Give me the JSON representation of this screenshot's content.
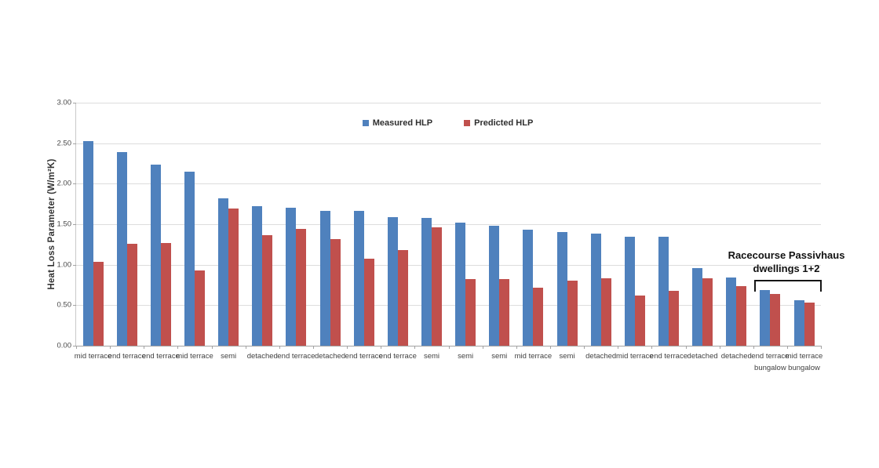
{
  "chart_data": {
    "type": "bar",
    "title": "",
    "xlabel": "",
    "ylabel": "Heat Loss Parameter (W/m²K)",
    "ylim": [
      0,
      3.0
    ],
    "ytick_step": 0.5,
    "yticks": [
      "3.00",
      "2.50",
      "2.00",
      "1.50",
      "1.00",
      "0.50",
      "0.00"
    ],
    "grid": true,
    "legend_position": "top-center",
    "categories": [
      {
        "label": "mid terrace",
        "sublabel": ""
      },
      {
        "label": "end terrace",
        "sublabel": ""
      },
      {
        "label": "end terrace",
        "sublabel": ""
      },
      {
        "label": "mid terrace",
        "sublabel": ""
      },
      {
        "label": "semi",
        "sublabel": ""
      },
      {
        "label": "detached",
        "sublabel": ""
      },
      {
        "label": "end terrace",
        "sublabel": ""
      },
      {
        "label": "detached",
        "sublabel": ""
      },
      {
        "label": "end terrace",
        "sublabel": ""
      },
      {
        "label": "end terrace",
        "sublabel": ""
      },
      {
        "label": "semi",
        "sublabel": ""
      },
      {
        "label": "semi",
        "sublabel": ""
      },
      {
        "label": "semi",
        "sublabel": ""
      },
      {
        "label": "mid terrace",
        "sublabel": ""
      },
      {
        "label": "semi",
        "sublabel": ""
      },
      {
        "label": "detached",
        "sublabel": ""
      },
      {
        "label": "mid terrace",
        "sublabel": ""
      },
      {
        "label": "end terrace",
        "sublabel": ""
      },
      {
        "label": "detached",
        "sublabel": ""
      },
      {
        "label": "detached",
        "sublabel": ""
      },
      {
        "label": "end terrace",
        "sublabel": "bungalow"
      },
      {
        "label": "mid terrace",
        "sublabel": "bungalow"
      }
    ],
    "series": [
      {
        "name": "Measured HLP",
        "color": "#4f81bd",
        "values": [
          2.53,
          2.39,
          2.24,
          2.15,
          1.82,
          1.72,
          1.7,
          1.66,
          1.66,
          1.59,
          1.58,
          1.52,
          1.48,
          1.43,
          1.4,
          1.38,
          1.35,
          1.35,
          0.96,
          0.84,
          0.69,
          0.56
        ]
      },
      {
        "name": "Predicted HLP",
        "color": "#c0504d",
        "values": [
          1.04,
          1.26,
          1.27,
          0.93,
          1.69,
          1.36,
          1.44,
          1.32,
          1.07,
          1.18,
          1.46,
          0.82,
          0.82,
          0.72,
          0.8,
          0.83,
          0.62,
          0.68,
          0.83,
          0.74,
          0.64,
          0.53
        ]
      }
    ],
    "annotation": {
      "line1": "Racecourse Passivhaus",
      "line2": "dwellings 1+2",
      "covers_categories": [
        "end terrace bungalow",
        "mid terrace bungalow"
      ]
    }
  }
}
